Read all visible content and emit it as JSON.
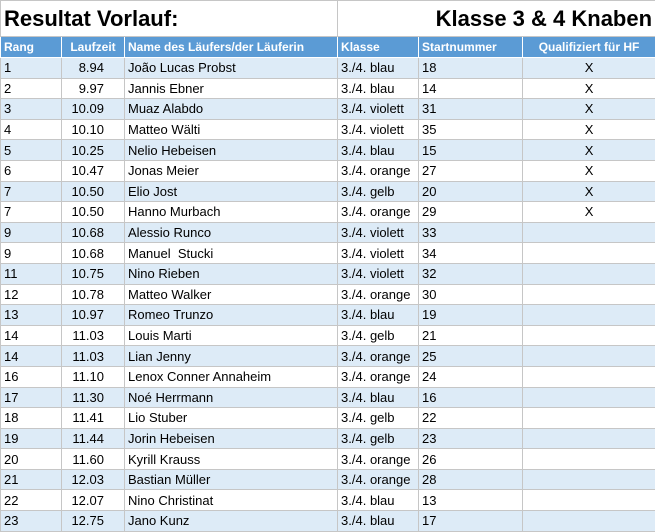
{
  "header": {
    "title": "Resultat Vorlauf:",
    "subtitle": "Klasse 3 & 4 Knaben"
  },
  "table": {
    "columns": [
      "Rang",
      "Laufzeit",
      "Name des Läufers/der Läuferin",
      "Klasse",
      "Startnummer",
      "Qualifiziert für HF"
    ],
    "rows": [
      [
        "1",
        "8.94",
        "João Lucas Probst",
        "3./4. blau",
        "18",
        "X"
      ],
      [
        "2",
        "9.97",
        "Jannis Ebner",
        "3./4. blau",
        "14",
        "X"
      ],
      [
        "3",
        "10.09",
        "Muaz Alabdo",
        "3./4. violett",
        "31",
        "X"
      ],
      [
        "4",
        "10.10",
        "Matteo Wälti",
        "3./4. violett",
        "35",
        "X"
      ],
      [
        "5",
        "10.25",
        "Nelio Hebeisen",
        "3./4. blau",
        "15",
        "X"
      ],
      [
        "6",
        "10.47",
        "Jonas Meier",
        "3./4. orange",
        "27",
        "X"
      ],
      [
        "7",
        "10.50",
        "Elio Jost",
        "3./4. gelb",
        "20",
        "X"
      ],
      [
        "7",
        "10.50",
        "Hanno Murbach",
        "3./4. orange",
        "29",
        "X"
      ],
      [
        "9",
        "10.68",
        "Alessio Runco",
        "3./4. violett",
        "33"
      ],
      [
        "9",
        "10.68",
        "Manuel  Stucki",
        "3./4. violett",
        "34"
      ],
      [
        "11",
        "10.75",
        "Nino Rieben",
        "3./4. violett",
        "32"
      ],
      [
        "12",
        "10.78",
        "Matteo Walker",
        "3./4. orange",
        "30"
      ],
      [
        "13",
        "10.97",
        "Romeo Trunzo",
        "3./4. blau",
        "19"
      ],
      [
        "14",
        "11.03",
        "Louis Marti",
        "3./4. gelb",
        "21"
      ],
      [
        "14",
        "11.03",
        "Lian Jenny",
        "3./4. orange",
        "25"
      ],
      [
        "16",
        "11.10",
        "Lenox Conner Annaheim",
        "3./4. orange",
        "24"
      ],
      [
        "17",
        "11.30",
        "Noé Herrmann",
        "3./4. blau",
        "16"
      ],
      [
        "18",
        "11.41",
        "Lio Stuber",
        "3./4. gelb",
        "22"
      ],
      [
        "19",
        "11.44",
        "Jorin Hebeisen",
        "3./4. gelb",
        "23"
      ],
      [
        "20",
        "11.60",
        "Kyrill Krauss",
        "3./4. orange",
        "26"
      ],
      [
        "21",
        "12.03",
        "Bastian Müller",
        "3./4. orange",
        "28"
      ],
      [
        "22",
        "12.07",
        "Nino Christinat",
        "3./4. blau",
        "13"
      ],
      [
        "23",
        "12.75",
        "Jano Kunz",
        "3./4. blau",
        "17"
      ]
    ]
  }
}
